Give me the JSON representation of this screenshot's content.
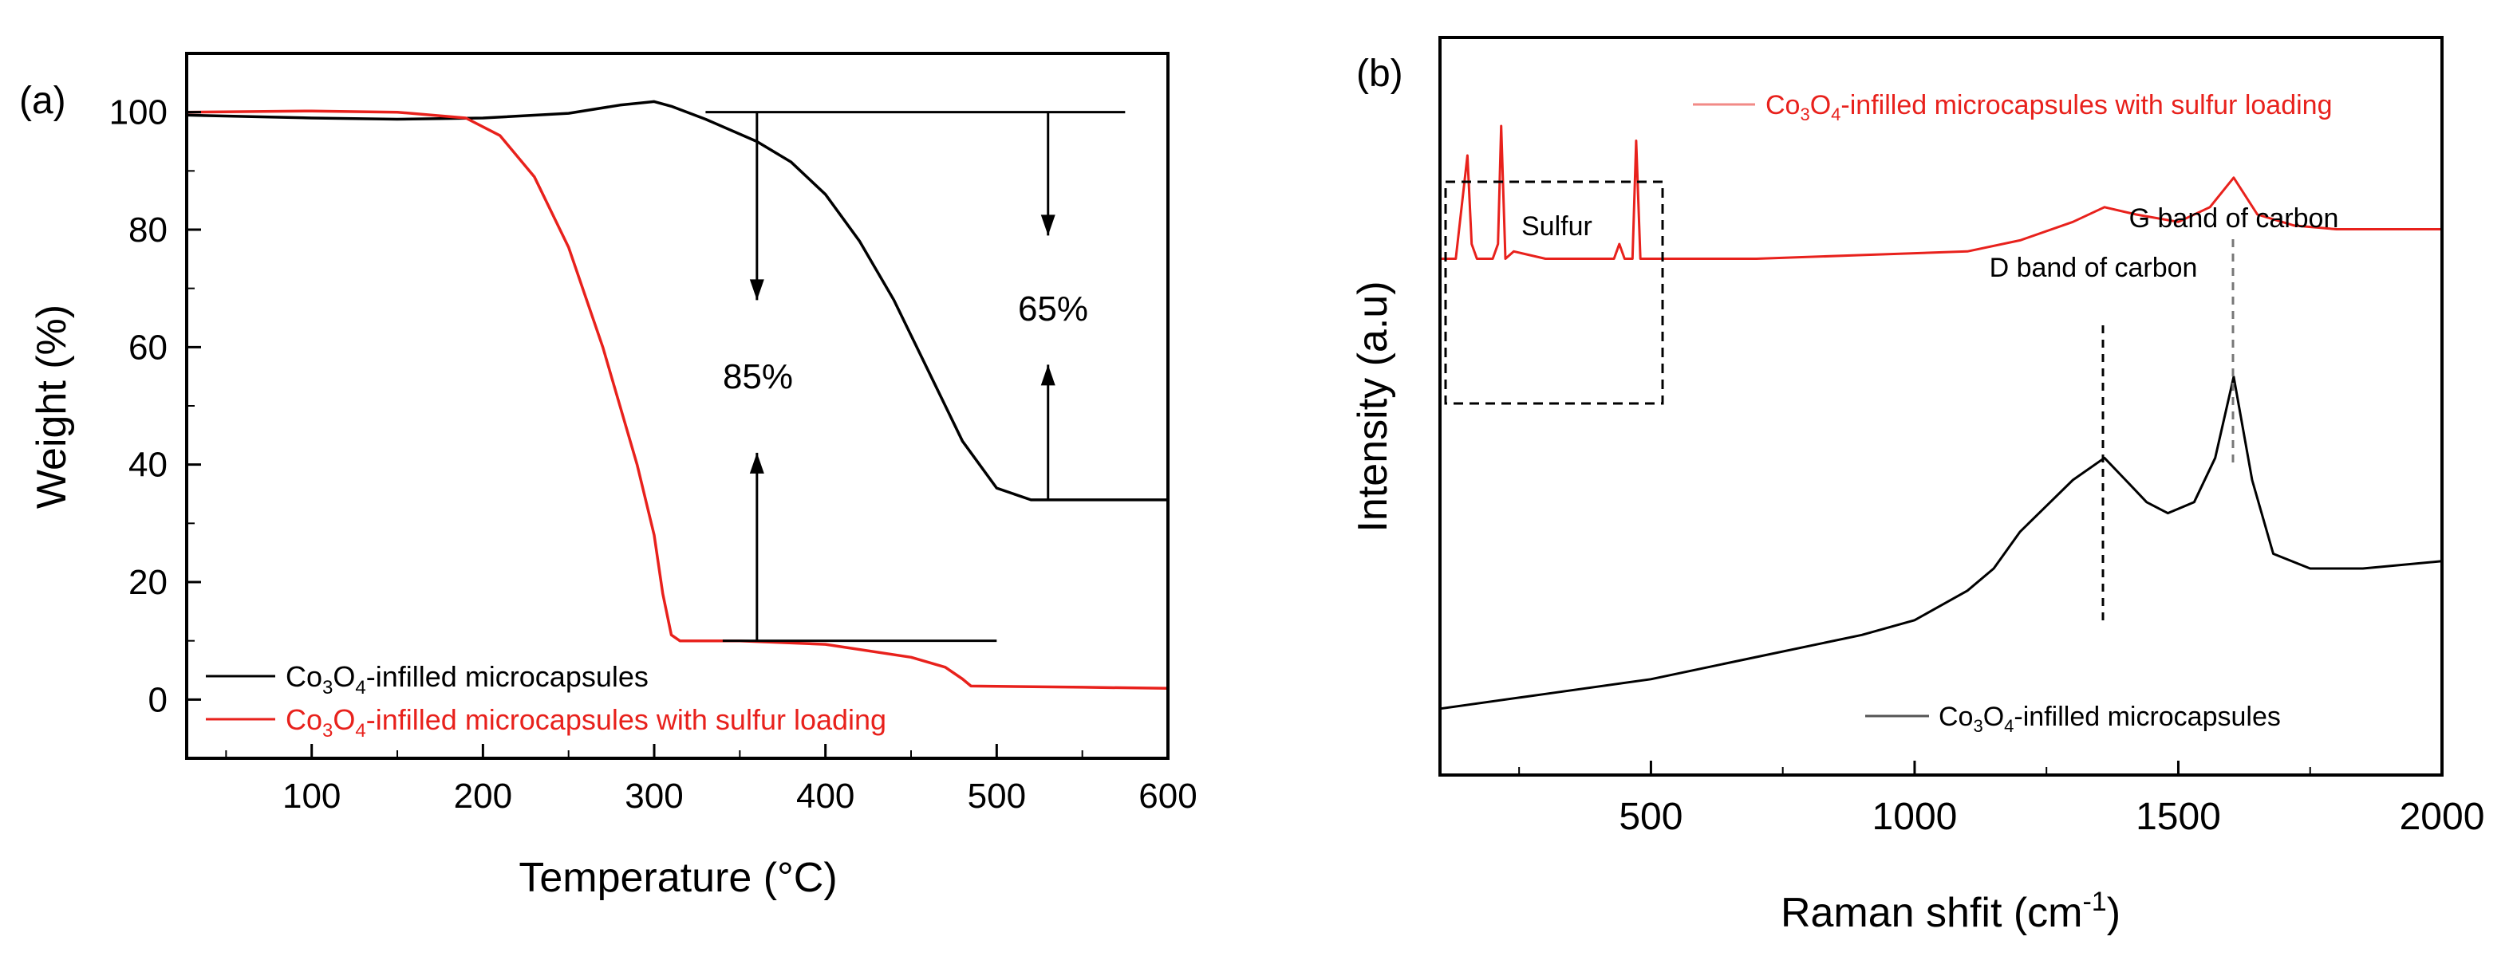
{
  "chart_data": [
    {
      "panel": "(a)",
      "type": "line",
      "title": "",
      "xlabel": "Temperature (°C)",
      "ylabel": "Weight (%)",
      "xlim": [
        27,
        600
      ],
      "ylim": [
        -10,
        110
      ],
      "xticks": [
        100,
        200,
        300,
        400,
        500,
        600
      ],
      "yticks": [
        0,
        20,
        40,
        60,
        80,
        100
      ],
      "legend": "bottom-left",
      "series": [
        {
          "name": "Co3O4-infilled microcapsules",
          "color": "#000000",
          "x": [
            27,
            100,
            150,
            200,
            250,
            280,
            300,
            310,
            330,
            360,
            380,
            400,
            420,
            440,
            460,
            480,
            500,
            520,
            550,
            600
          ],
          "y": [
            99.5,
            99,
            98.8,
            99,
            99.8,
            101.2,
            101.8,
            101,
            98.8,
            95,
            91.5,
            86,
            78,
            68,
            56,
            44,
            36,
            34,
            34,
            34
          ]
        },
        {
          "name": "Co3O4-infilled microcapsules with sulfur loading",
          "color": "#e8211c",
          "x": [
            27,
            100,
            150,
            190,
            210,
            230,
            250,
            270,
            280,
            290,
            300,
            305,
            310,
            315,
            350,
            400,
            450,
            470,
            480,
            485,
            550,
            600
          ],
          "y": [
            100,
            100.2,
            100,
            99,
            96,
            89,
            77,
            60,
            50,
            40,
            28,
            18,
            11,
            10,
            10,
            9.4,
            7.2,
            5.5,
            3.5,
            2.3,
            2.1,
            1.9
          ]
        }
      ],
      "annotations": [
        {
          "text": "85%",
          "x": 360,
          "y": 55
        },
        {
          "text": "65%",
          "x": 530,
          "y": 66
        }
      ]
    },
    {
      "panel": "(b)",
      "type": "line",
      "title": "",
      "xlabel": "Raman shfit (cm",
      "xlabel_sup": "-1",
      "xlabel_end": ")",
      "ylabel": "Intensity (a.u)",
      "xlim": [
        100,
        2000
      ],
      "xticks": [
        500,
        1000,
        1500,
        2000
      ],
      "legend": "inline",
      "series": [
        {
          "name": "Co3O4-infilled microcapsules with sulfur loading",
          "color": "#e8211c",
          "x": [
            100,
            130,
            152,
            160,
            170,
            200,
            210,
            216,
            224,
            240,
            300,
            430,
            440,
            450,
            465,
            472,
            480,
            500,
            700,
            900,
            1100,
            1200,
            1300,
            1360,
            1420,
            1500,
            1560,
            1605,
            1650,
            1720,
            1800,
            2000
          ],
          "y": [
            0.7,
            0.7,
            0.84,
            0.72,
            0.7,
            0.7,
            0.72,
            0.88,
            0.7,
            0.71,
            0.7,
            0.7,
            0.72,
            0.7,
            0.7,
            0.86,
            0.7,
            0.7,
            0.7,
            0.705,
            0.71,
            0.725,
            0.75,
            0.77,
            0.76,
            0.75,
            0.77,
            0.81,
            0.76,
            0.745,
            0.74,
            0.74
          ]
        },
        {
          "name": "Co3O4-infilled microcapsules",
          "color": "#000000",
          "x": [
            100,
            300,
            500,
            700,
            900,
            1000,
            1100,
            1150,
            1200,
            1300,
            1360,
            1400,
            1440,
            1480,
            1530,
            1570,
            1605,
            1640,
            1680,
            1750,
            1850,
            2000
          ],
          "y": [
            0.09,
            0.11,
            0.13,
            0.16,
            0.19,
            0.21,
            0.25,
            0.28,
            0.33,
            0.4,
            0.43,
            0.4,
            0.37,
            0.355,
            0.37,
            0.43,
            0.54,
            0.4,
            0.3,
            0.28,
            0.28,
            0.29
          ]
        }
      ],
      "annotations": [
        {
          "text": "Sulfur"
        },
        {
          "text": "D band of carbon"
        },
        {
          "text": "G band of carbon"
        }
      ]
    }
  ],
  "panel_a": {
    "label": "(a)",
    "legend": [
      {
        "pre": "Co",
        "s1": "3",
        "mid": "O",
        "s2": "4",
        "post": "-infilled microcapsules"
      },
      {
        "pre": "Co",
        "s1": "3",
        "mid": "O",
        "s2": "4",
        "post": "-infilled microcapsules with sulfur loading"
      }
    ]
  },
  "panel_b": {
    "label": "(b)",
    "legend": [
      {
        "pre": "Co",
        "s1": "3",
        "mid": "O",
        "s2": "4",
        "post": "-infilled microcapsules with sulfur loading"
      },
      {
        "pre": "Co",
        "s1": "3",
        "mid": "O",
        "s2": "4",
        "post": "-infilled microcapsules"
      }
    ]
  }
}
